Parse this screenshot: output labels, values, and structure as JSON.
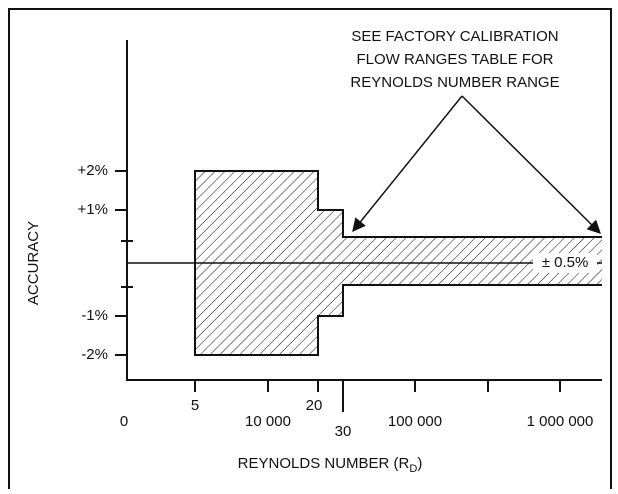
{
  "annotation": [
    "SEE FACTORY CALIBRATION",
    "FLOW RANGES TABLE FOR",
    "REYNOLDS NUMBER RANGE"
  ],
  "y_axis_label": "ACCURACY",
  "y_labels": [
    "+2%",
    "+1%",
    "-1%",
    "-2%"
  ],
  "band_label": "± 0.5%",
  "x_labels_upper": [
    "5",
    "20"
  ],
  "x_labels_lower": [
    "0",
    "10 000",
    "30",
    "100 000",
    "1 000 000"
  ],
  "x_axis_label": {
    "text": "REYNOLDS NUMBER (R",
    "subscript": "D",
    "suffix": ")"
  }
}
